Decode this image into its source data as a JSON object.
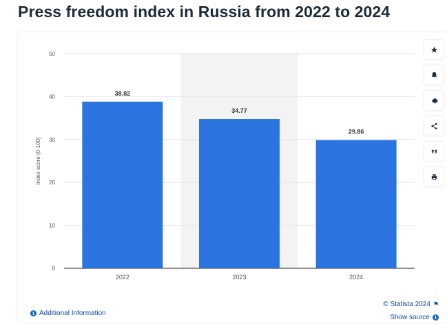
{
  "page": {
    "title": "Press freedom index in Russia from 2022 to 2024"
  },
  "chart_data": {
    "type": "bar",
    "categories": [
      "2022",
      "2023",
      "2024"
    ],
    "values": [
      38.82,
      34.77,
      29.86
    ],
    "value_labels": [
      "38.82",
      "34.77",
      "29.86"
    ],
    "ylabel": "Index score (0-100)",
    "xlabel": "",
    "ylim": [
      0,
      50
    ],
    "yticks": [
      0,
      10,
      20,
      30,
      40,
      50
    ],
    "grid": true,
    "highlighted_category": "2023",
    "bar_color": "#2b74e0",
    "highlight_color": "#f3f3f3"
  },
  "toolbar": {
    "items": [
      {
        "name": "favorite",
        "icon": "star-icon"
      },
      {
        "name": "notification",
        "icon": "bell-icon"
      },
      {
        "name": "settings",
        "icon": "gear-icon"
      },
      {
        "name": "share",
        "icon": "share-icon"
      },
      {
        "name": "cite",
        "icon": "quote-icon"
      },
      {
        "name": "print",
        "icon": "printer-icon"
      }
    ]
  },
  "footer": {
    "additional_info": "Additional Information",
    "copyright": "© Statista 2024",
    "show_source": "Show source"
  }
}
